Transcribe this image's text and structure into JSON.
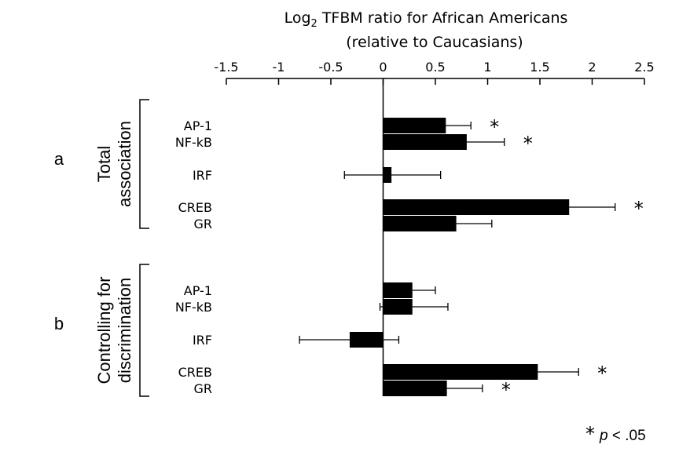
{
  "chart_data": {
    "type": "bar",
    "orientation": "horizontal",
    "title": {
      "line1_prefix": "Log",
      "line1_sub": "2",
      "line1_suffix": " TFBM ratio for African Americans",
      "line2": "(relative to Caucasians)"
    },
    "xlim": [
      -1.5,
      2.5
    ],
    "xticks": [
      "-1.5",
      "-1",
      "-0.5",
      "0",
      "0.5",
      "1",
      "1.5",
      "2",
      "2.5"
    ],
    "panels": [
      {
        "letter": "a",
        "label_lines": [
          "Total",
          "association"
        ],
        "categories": [
          "AP-1",
          "NF-kB",
          "IRF",
          "CREB",
          "GR"
        ],
        "values": [
          0.6,
          0.8,
          0.08,
          1.78,
          0.7
        ],
        "err_low": [
          0.6,
          0.8,
          -0.37,
          1.78,
          0.7
        ],
        "err_high": [
          0.84,
          1.16,
          0.55,
          2.22,
          1.04
        ],
        "significant": [
          true,
          true,
          false,
          true,
          false
        ]
      },
      {
        "letter": "b",
        "label_lines": [
          "Controlling for",
          "discrimination"
        ],
        "categories": [
          "AP-1",
          "NF-kB",
          "IRF",
          "CREB",
          "GR"
        ],
        "values": [
          0.28,
          0.28,
          -0.32,
          1.48,
          0.61
        ],
        "err_low": [
          0.28,
          -0.03,
          -0.8,
          1.48,
          0.61
        ],
        "err_high": [
          0.5,
          0.62,
          0.15,
          1.87,
          0.95
        ],
        "significant": [
          false,
          false,
          false,
          true,
          true
        ]
      }
    ],
    "significance": {
      "symbol": "*",
      "label": "p",
      "suffix": " < .05"
    }
  }
}
